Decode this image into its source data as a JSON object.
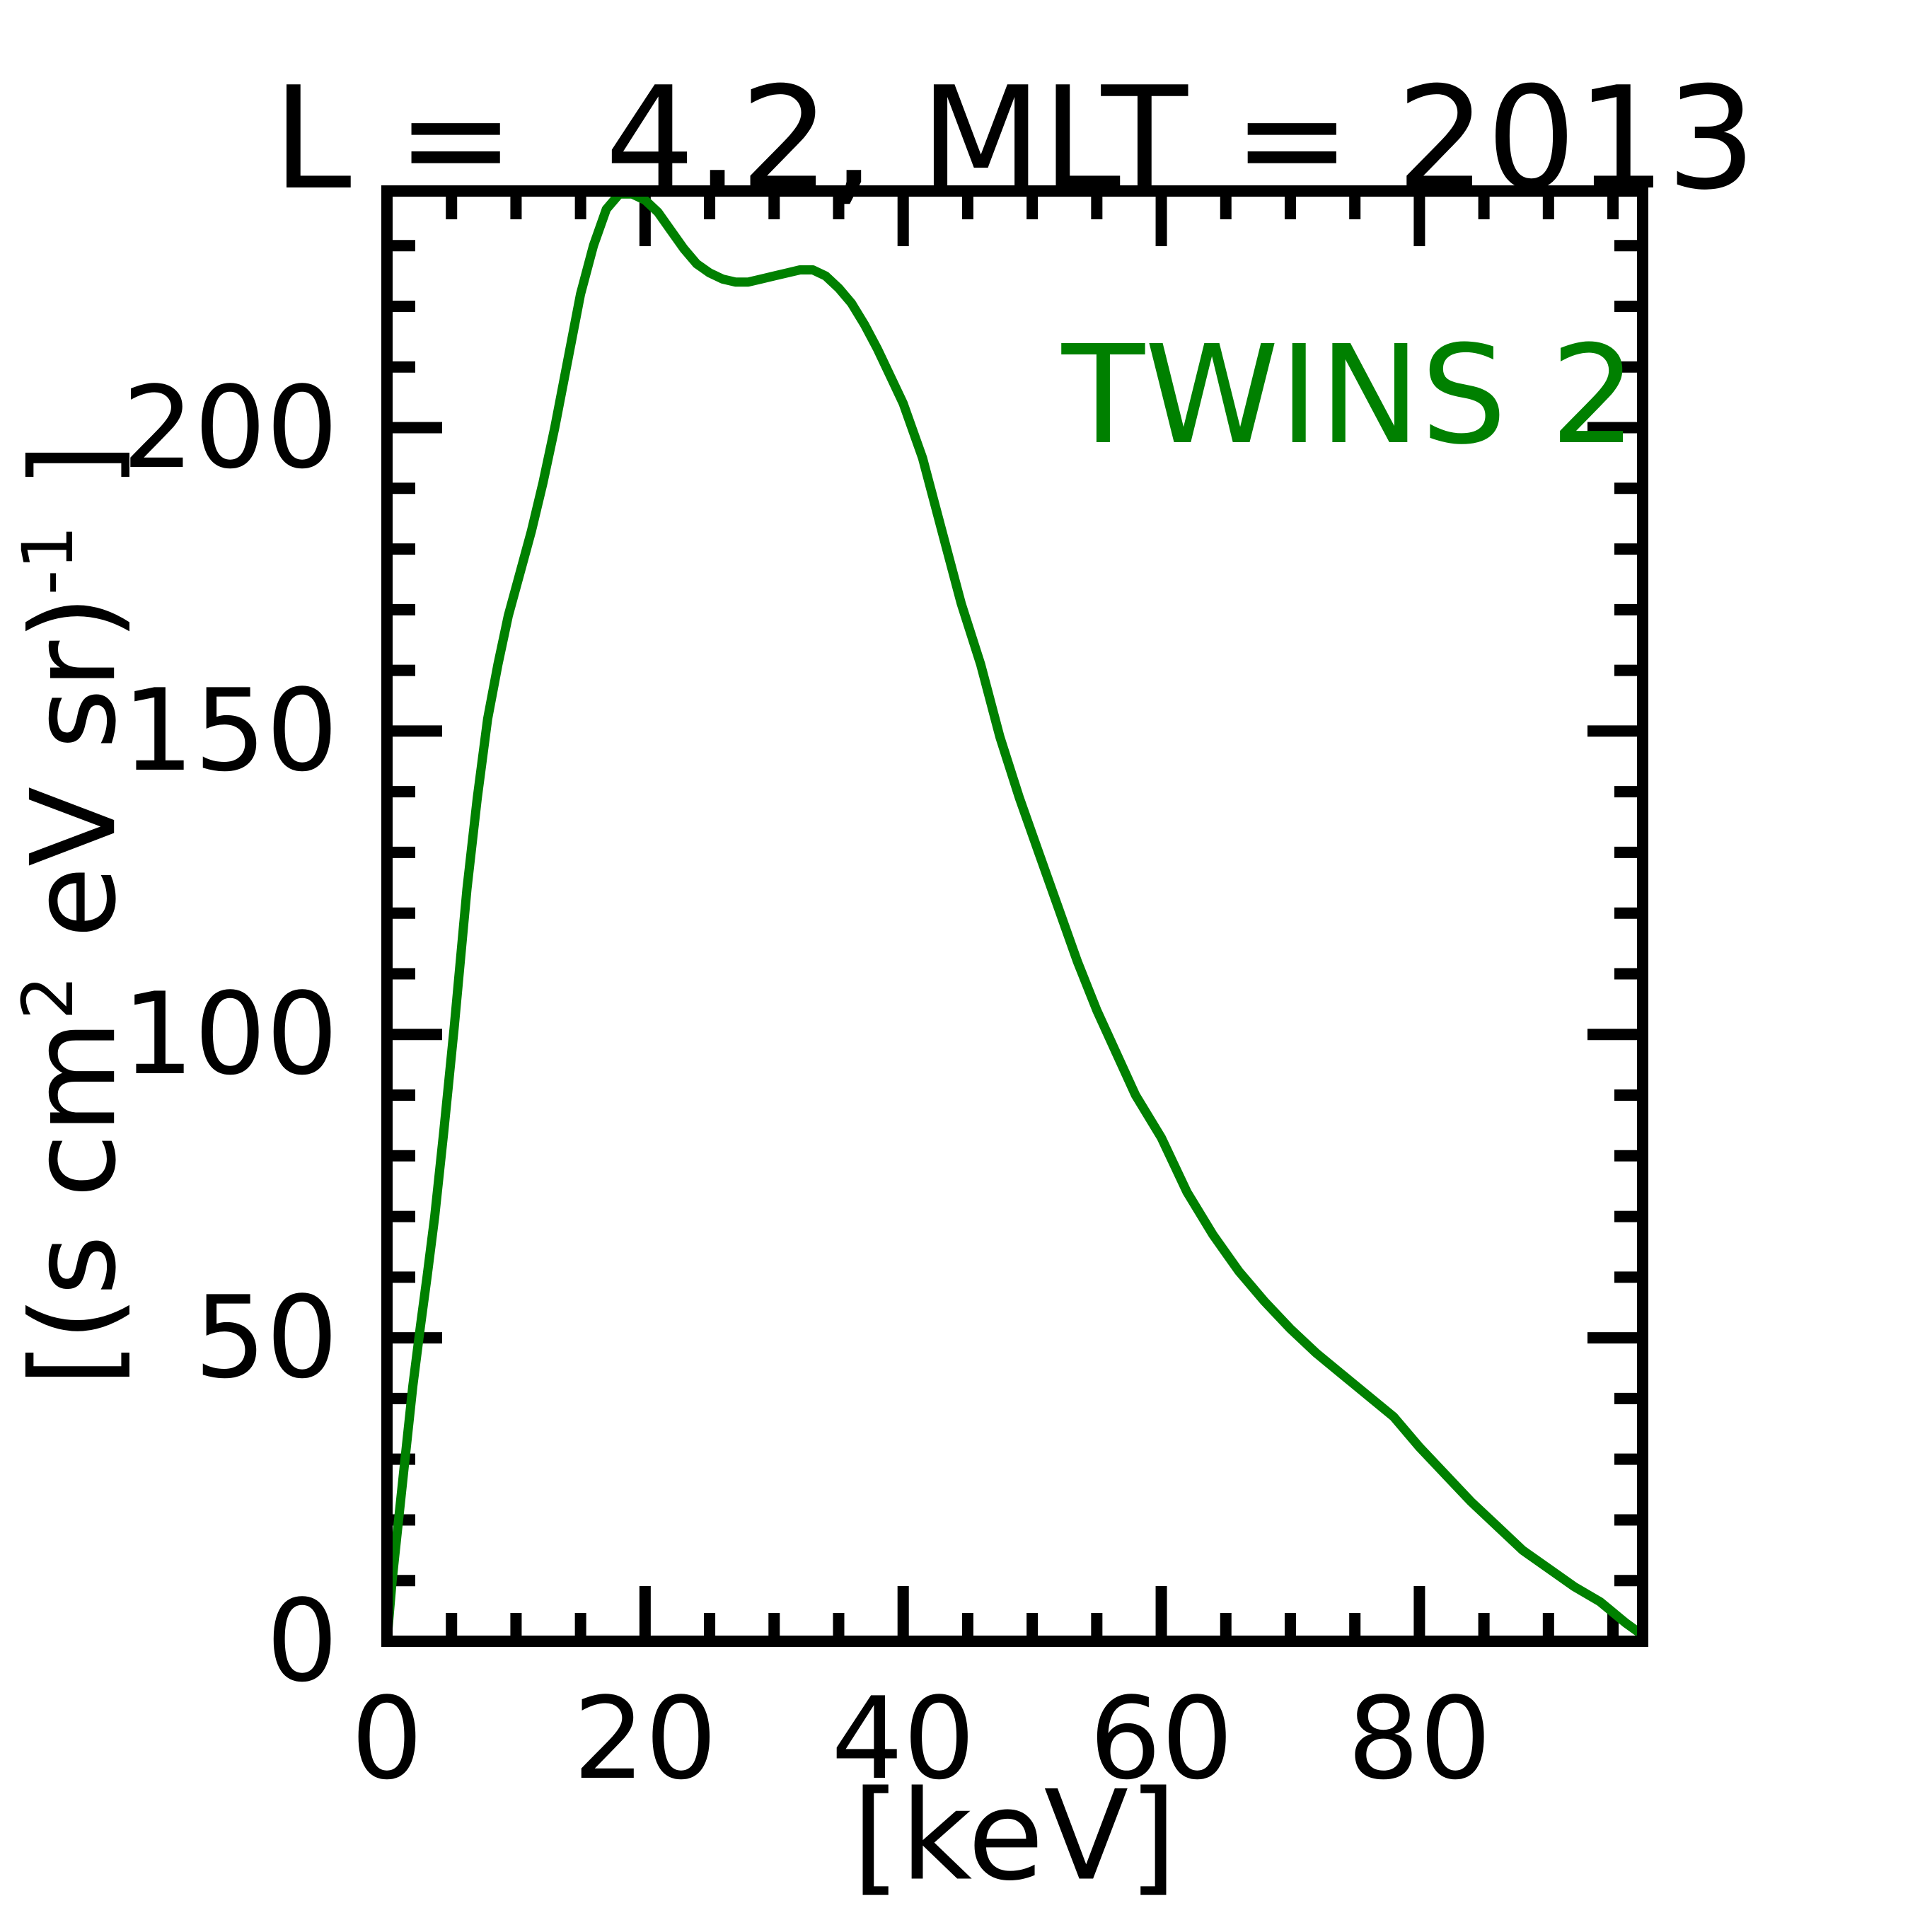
{
  "title": "L =  4.2, MLT = 2013",
  "legend": {
    "label": "TWINS 2",
    "color": "#008000"
  },
  "axes": {
    "x": {
      "label": "[keV]",
      "major_ticks": [
        0,
        20,
        40,
        60,
        80
      ],
      "minor_step": 5,
      "range": [
        0,
        97.3
      ]
    },
    "y": {
      "label": "[(s cm2 eV sr)-1 ]",
      "label_prefix": "[(s cm",
      "label_sup1": "2",
      "label_mid": " eV sr)",
      "label_sup2": "-1",
      "label_suffix": " ]",
      "major_ticks": [
        0,
        50,
        100,
        150,
        200
      ],
      "minor_step": 10,
      "range": [
        0,
        239
      ]
    }
  },
  "frame_color": "#000000",
  "chart_data": {
    "type": "line",
    "title": "L =  4.2, MLT = 2013",
    "xlabel": "[keV]",
    "ylabel": "[(s cm2 eV sr)-1 ]",
    "xlim": [
      0,
      97.3
    ],
    "ylim": [
      0,
      239
    ],
    "grid": false,
    "legend_position": "upper right",
    "x_major_ticks": [
      0,
      20,
      40,
      60,
      80
    ],
    "x_minor_step": 5,
    "y_major_ticks": [
      0,
      50,
      100,
      150,
      200
    ],
    "y_minor_step": 10,
    "series": [
      {
        "name": "TWINS 2",
        "color": "#008000",
        "x": [
          0,
          0.4,
          0.9,
          1.4,
          2.0,
          2.6,
          3.1,
          3.7,
          4.4,
          5.2,
          6.2,
          7.0,
          7.8,
          8.6,
          9.4,
          10.3,
          11.2,
          12.1,
          13.0,
          14.0,
          15.0,
          16.0,
          17.0,
          18.0,
          19.0,
          20.0,
          21.0,
          22.0,
          23.0,
          24.0,
          25.0,
          26.0,
          27.0,
          28.0,
          29.0,
          30.0,
          31.0,
          32.0,
          33.0,
          34.0,
          35.0,
          36.0,
          37.0,
          38.0,
          39.0,
          40.0,
          41.5,
          43.0,
          44.5,
          46.0,
          47.5,
          49.0,
          50.5,
          52.0,
          53.5,
          55.0,
          56.5,
          58.0,
          60.0,
          62.0,
          64.0,
          66.0,
          68.0,
          70.0,
          72.0,
          74.0,
          76.0,
          78.0,
          80.0,
          82.0,
          84.0,
          86.0,
          88.0,
          90.0,
          92.0,
          94.0,
          96.0,
          97.3
        ],
        "y": [
          0,
          10,
          20,
          30,
          42,
          52,
          60,
          70,
          84,
          101,
          124,
          139,
          152,
          161,
          169,
          176,
          183,
          191,
          200,
          211,
          222,
          230,
          236,
          238.5,
          238.5,
          237.5,
          235.5,
          232.5,
          229.5,
          227,
          225.5,
          224.5,
          224,
          224,
          224.5,
          225,
          225.5,
          226,
          226,
          225,
          223,
          220.5,
          217,
          213,
          208.5,
          204,
          195,
          183,
          171,
          161,
          149,
          139,
          130,
          121,
          112,
          104,
          97,
          90,
          83,
          74,
          67,
          61,
          56,
          51.5,
          47.5,
          44,
          40.5,
          37,
          32,
          27.5,
          23,
          19,
          15,
          12,
          9,
          6.5,
          3,
          1
        ]
      }
    ]
  }
}
